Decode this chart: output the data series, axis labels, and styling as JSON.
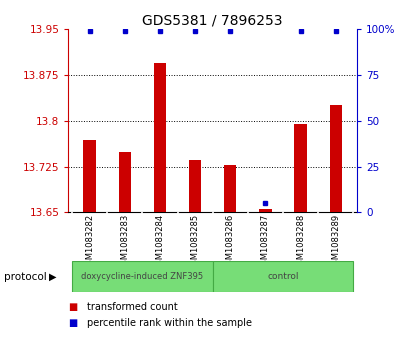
{
  "title": "GDS5381 / 7896253",
  "samples": [
    "GSM1083282",
    "GSM1083283",
    "GSM1083284",
    "GSM1083285",
    "GSM1083286",
    "GSM1083287",
    "GSM1083288",
    "GSM1083289"
  ],
  "red_values": [
    13.768,
    13.748,
    13.895,
    13.735,
    13.728,
    13.655,
    13.795,
    13.825
  ],
  "blue_values": [
    99,
    99,
    99,
    99,
    99,
    5,
    99,
    99
  ],
  "ylim_left": [
    13.65,
    13.95
  ],
  "ylim_right": [
    0,
    100
  ],
  "yticks_left": [
    13.65,
    13.725,
    13.8,
    13.875,
    13.95
  ],
  "yticks_right": [
    0,
    25,
    50,
    75,
    100
  ],
  "ytick_labels_right": [
    "0",
    "25",
    "50",
    "75",
    "100%"
  ],
  "group1_label": "doxycycline-induced ZNF395",
  "group2_label": "control",
  "group1_count": 4,
  "protocol_label": "protocol",
  "legend_red": "transformed count",
  "legend_blue": "percentile rank within the sample",
  "bar_color": "#cc0000",
  "dot_color": "#0000cc",
  "group_color": "#77dd77",
  "box_color": "#d3d3d3",
  "box_edge_color": "#aaaaaa"
}
